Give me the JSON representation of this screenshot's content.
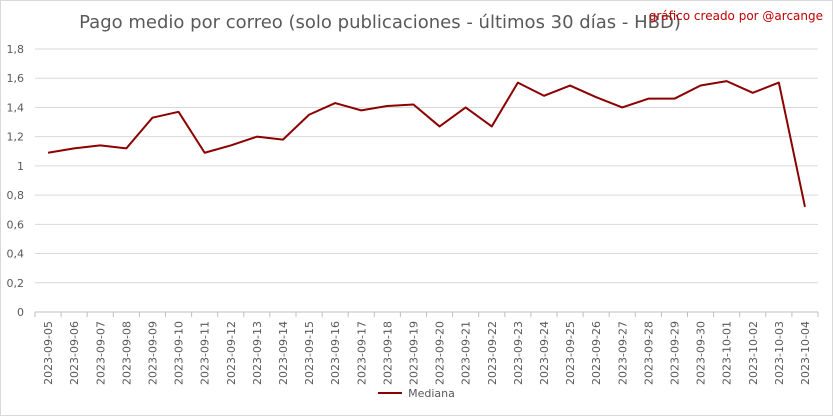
{
  "credit": "gráfico creado por @arcange",
  "chart_data": {
    "type": "line",
    "title": "Pago medio por correo (solo publicaciones - últimos 30 días - HBD)",
    "xlabel": "",
    "ylabel": "",
    "ylim": [
      0,
      1.8
    ],
    "yticks": [
      "0",
      "0,2",
      "0,4",
      "0,6",
      "0,8",
      "1",
      "1,2",
      "1,4",
      "1,6",
      "1,8"
    ],
    "grid": true,
    "legend_position": "bottom",
    "line_color": "#8b0000",
    "categories": [
      "2023-09-05",
      "2023-09-06",
      "2023-09-07",
      "2023-09-08",
      "2023-09-09",
      "2023-09-10",
      "2023-09-11",
      "2023-09-12",
      "2023-09-13",
      "2023-09-14",
      "2023-09-15",
      "2023-09-16",
      "2023-09-17",
      "2023-09-18",
      "2023-09-19",
      "2023-09-20",
      "2023-09-21",
      "2023-09-22",
      "2023-09-23",
      "2023-09-24",
      "2023-09-25",
      "2023-09-26",
      "2023-09-27",
      "2023-09-28",
      "2023-09-29",
      "2023-09-30",
      "2023-10-01",
      "2023-10-02",
      "2023-10-03",
      "2023-10-04"
    ],
    "series": [
      {
        "name": "Mediana",
        "values": [
          1.09,
          1.12,
          1.14,
          1.12,
          1.33,
          1.37,
          1.09,
          1.14,
          1.2,
          1.18,
          1.35,
          1.43,
          1.38,
          1.41,
          1.42,
          1.27,
          1.4,
          1.27,
          1.57,
          1.48,
          1.55,
          1.47,
          1.4,
          1.46,
          1.46,
          1.55,
          1.58,
          1.5,
          1.57,
          0.72
        ]
      }
    ]
  }
}
